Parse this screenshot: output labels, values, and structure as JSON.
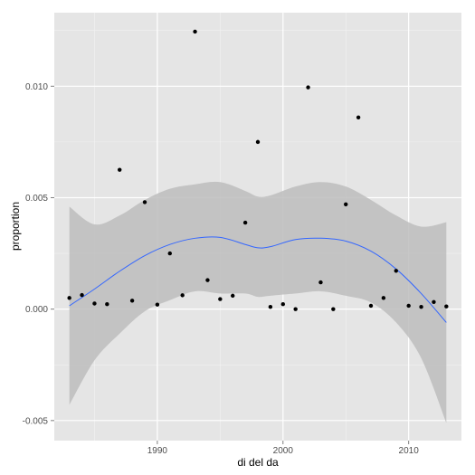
{
  "chart_data": {
    "type": "scatter",
    "xlabel": "di del da",
    "ylabel": "proportion",
    "xlim": [
      1981.8,
      2014.2
    ],
    "ylim": [
      -0.0059,
      0.0133
    ],
    "x_ticks": [
      1990,
      2000,
      2010
    ],
    "x_tick_labels": [
      "1990",
      "2000",
      "2010"
    ],
    "y_ticks": [
      -0.005,
      0,
      0.005,
      0.01
    ],
    "y_tick_labels": [
      "-0.005",
      "0.000",
      "0.005",
      "0.010"
    ],
    "grid": true,
    "colors": {
      "panel": "#e5e5e5",
      "grid_major": "#ffffff",
      "grid_minor": "#f2f2f2",
      "points": "#000000",
      "smooth_line": "#3366ff",
      "confidence_band": "#bdbdbd"
    },
    "points": [
      {
        "x": 1983,
        "y": 0.0005
      },
      {
        "x": 1984,
        "y": 0.00063
      },
      {
        "x": 1985,
        "y": 0.00025
      },
      {
        "x": 1986,
        "y": 0.00022
      },
      {
        "x": 1987,
        "y": 0.00625
      },
      {
        "x": 1988,
        "y": 0.00038
      },
      {
        "x": 1989,
        "y": 0.0048
      },
      {
        "x": 1990,
        "y": 0.0002
      },
      {
        "x": 1991,
        "y": 0.0025
      },
      {
        "x": 1992,
        "y": 0.00062
      },
      {
        "x": 1993,
        "y": 0.01245
      },
      {
        "x": 1994,
        "y": 0.0013
      },
      {
        "x": 1995,
        "y": 0.00045
      },
      {
        "x": 1996,
        "y": 0.0006
      },
      {
        "x": 1997,
        "y": 0.00388
      },
      {
        "x": 1998,
        "y": 0.0075
      },
      {
        "x": 1999,
        "y": 0.0001
      },
      {
        "x": 2000,
        "y": 0.00022
      },
      {
        "x": 2001,
        "y": 0.0
      },
      {
        "x": 2002,
        "y": 0.00995
      },
      {
        "x": 2003,
        "y": 0.0012
      },
      {
        "x": 2004,
        "y": 0.0
      },
      {
        "x": 2005,
        "y": 0.0047
      },
      {
        "x": 2006,
        "y": 0.0086
      },
      {
        "x": 2007,
        "y": 0.00015
      },
      {
        "x": 2008,
        "y": 0.0005
      },
      {
        "x": 2009,
        "y": 0.00172
      },
      {
        "x": 2010,
        "y": 0.00015
      },
      {
        "x": 2011,
        "y": 0.0001
      },
      {
        "x": 2012,
        "y": 0.00032
      },
      {
        "x": 2013,
        "y": 0.00012
      }
    ],
    "smooth": {
      "x": [
        1983,
        1985,
        1987,
        1989,
        1991,
        1993,
        1995,
        1997,
        1998,
        1999,
        2001,
        2003,
        2005,
        2007,
        2009,
        2011,
        2013
      ],
      "y": [
        0.00015,
        0.0009,
        0.0017,
        0.0024,
        0.0029,
        0.00318,
        0.00322,
        0.0029,
        0.00275,
        0.0028,
        0.00312,
        0.00318,
        0.00305,
        0.0026,
        0.0018,
        0.0007,
        -0.0006
      ],
      "upper": [
        0.0046,
        0.0038,
        0.0042,
        0.0049,
        0.0054,
        0.0056,
        0.0057,
        0.0053,
        0.00505,
        0.0051,
        0.0055,
        0.0057,
        0.0055,
        0.0049,
        0.0042,
        0.0037,
        0.0039
      ],
      "lower": [
        -0.0043,
        -0.0023,
        -0.0011,
        -0.0001,
        0.0004,
        0.0008,
        0.0007,
        0.0007,
        0.00055,
        0.0006,
        0.0007,
        0.0008,
        0.0006,
        0.0003,
        -0.0006,
        -0.0022,
        -0.0051
      ]
    }
  }
}
